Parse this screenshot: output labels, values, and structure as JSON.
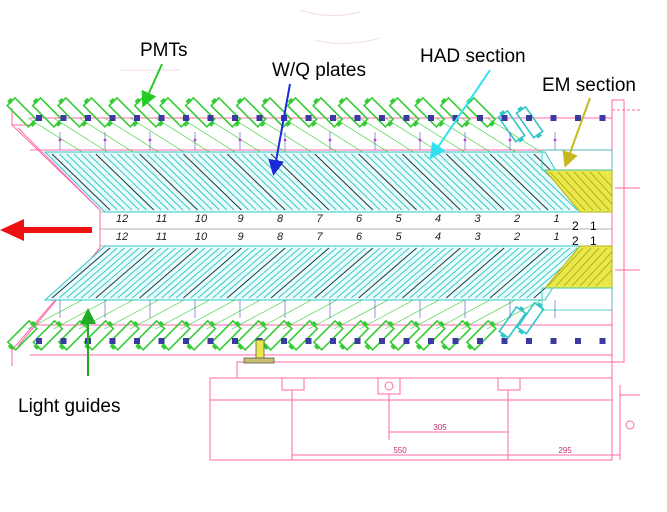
{
  "labels": {
    "pmts": "PMTs",
    "wq_plates": "W/Q plates",
    "had_section": "HAD section",
    "em_section": "EM section",
    "light_guides": "Light guides"
  },
  "modules_top": [
    "12",
    "11",
    "10",
    "9",
    "8",
    "7",
    "6",
    "5",
    "4",
    "3",
    "2",
    "1"
  ],
  "modules_bottom": [
    "12",
    "11",
    "10",
    "9",
    "8",
    "7",
    "6",
    "5",
    "4",
    "3",
    "2",
    "1"
  ],
  "em_numbers_top": [
    "2",
    "1"
  ],
  "em_numbers_bottom": [
    "2",
    "1"
  ],
  "dimensions": {
    "d305": "305",
    "d550": "550",
    "d295": "295"
  },
  "colors": {
    "plates": "#2fc7c7",
    "pmt": "#33cc33",
    "frame": "#ff6aa8",
    "em": "#e8e84a",
    "arrow_pmts": "#22cc22",
    "arrow_wq": "#1a2ad8",
    "arrow_had": "#33e0f0",
    "arrow_em": "#c8b820",
    "arrow_lg": "#22aa22",
    "beam_arrow": "#ee1111"
  }
}
